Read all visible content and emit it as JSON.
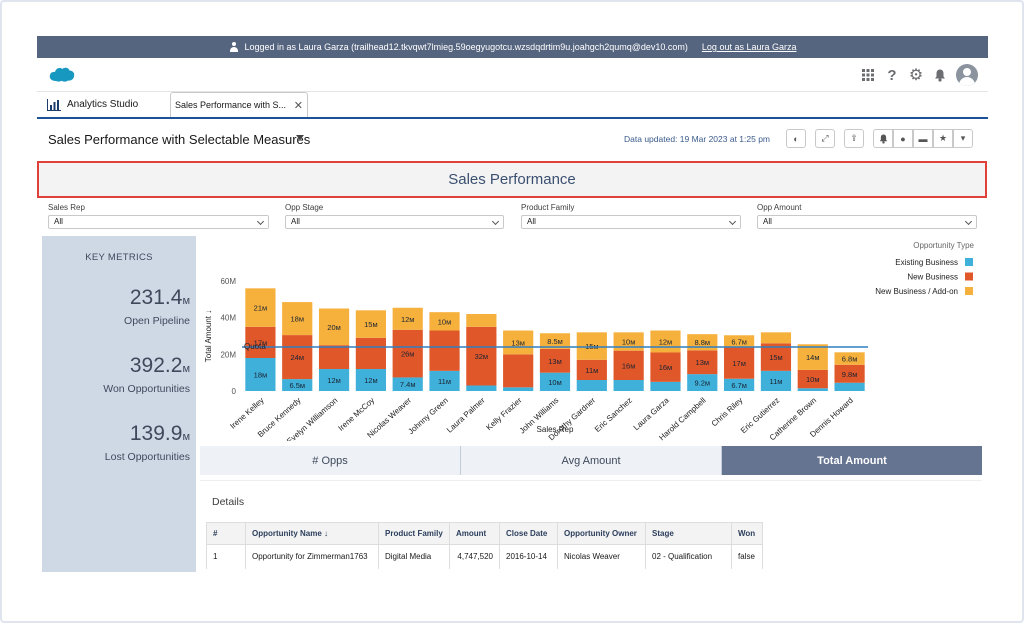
{
  "login_bar": {
    "text": "Logged in as Laura Garza (trailhead12.tkvqwt7lmieg.59oegyugotcu.wzsdqdrtim9u.joahgch2qumq@dev10.com)",
    "logout": "Log out as Laura Garza"
  },
  "header": {
    "icons": [
      "apps-grid-icon",
      "help-icon",
      "gear-icon",
      "bell-icon",
      "avatar"
    ]
  },
  "tabs": {
    "home": "Analytics Studio",
    "active": "Sales Performance with S..."
  },
  "dashboard": {
    "title": "Sales Performance with Selectable Measures",
    "updated": "Data updated: 19 Mar 2023 at 1:25 pm"
  },
  "banner": {
    "title": "Sales Performance"
  },
  "filters": [
    {
      "label": "Sales Rep",
      "value": "All"
    },
    {
      "label": "Opp Stage",
      "value": "All"
    },
    {
      "label": "Product Family",
      "value": "All"
    },
    {
      "label": "Opp Amount",
      "value": "All"
    }
  ],
  "key_metrics": {
    "title": "KEY METRICS",
    "items": [
      {
        "value": "231.4",
        "unit": "м",
        "label": "Open Pipeline"
      },
      {
        "value": "392.2",
        "unit": "м",
        "label": "Won Opportunities"
      },
      {
        "value": "139.9",
        "unit": "м",
        "label": "Lost Opportunities"
      }
    ]
  },
  "chart_data": {
    "type": "bar",
    "stacked": true,
    "xlabel": "Sales Rep",
    "ylabel": "Total Amount ↓",
    "ylim": [
      0,
      60
    ],
    "yticks": [
      "0",
      "20M",
      "40M",
      "60M"
    ],
    "legend_title": "Opportunity Type",
    "legend_position": "top-right",
    "reference_line": {
      "label": "Quota",
      "value": 24
    },
    "categories": [
      "Irene Kelley",
      "Bruce Kennedy",
      "Evelyn Williamson",
      "Irene McCoy",
      "Nicolas Weaver",
      "Johnny Green",
      "Laura Palmer",
      "Kelly Frazier",
      "John Williams",
      "Dorothy Gardner",
      "Eric Sanchez",
      "Laura Garza",
      "Harold Campbell",
      "Chris Riley",
      "Eric Gutierrez",
      "Catherine Brown",
      "Dennis Howard"
    ],
    "series": [
      {
        "name": "Existing Business",
        "color": "#3fb0d9",
        "values": [
          18,
          6.5,
          12,
          12,
          7.4,
          11,
          3,
          2,
          10,
          6,
          6,
          5,
          9.2,
          6.7,
          11,
          1.5,
          4.5
        ]
      },
      {
        "name": "New Business",
        "color": "#e0572a",
        "values": [
          17,
          24,
          13,
          17,
          26,
          22,
          32,
          18,
          13,
          11,
          16,
          16,
          13,
          17,
          15,
          10,
          9.8
        ]
      },
      {
        "name": "New Business / Add-on",
        "color": "#f6b03c",
        "values": [
          21,
          18,
          20,
          15,
          12,
          10,
          7,
          13,
          8.5,
          15,
          10,
          12,
          8.8,
          6.7,
          6,
          14,
          6.8
        ]
      }
    ],
    "data_labels": [
      [
        "18",
        "17",
        "21"
      ],
      [
        "6.5",
        "24",
        "18"
      ],
      [
        "12",
        "",
        "20"
      ],
      [
        "12",
        "",
        "15"
      ],
      [
        "7.4",
        "26",
        "12"
      ],
      [
        "11",
        "",
        "10"
      ],
      [
        "",
        "32",
        ""
      ],
      [
        "",
        "",
        "13"
      ],
      [
        "10",
        "13",
        "8.5"
      ],
      [
        "",
        "11",
        "15"
      ],
      [
        "",
        "16",
        "10"
      ],
      [
        "",
        "16",
        "12"
      ],
      [
        "9.2",
        "13",
        "8.8"
      ],
      [
        "6.7",
        "17",
        "6.7"
      ],
      [
        "11",
        "15",
        ""
      ],
      [
        "",
        "10",
        "14"
      ],
      [
        "",
        "9.8",
        "6.8"
      ]
    ],
    "label_suffix": "м"
  },
  "measure_toggles": {
    "items": [
      "# Opps",
      "Avg Amount",
      "Total Amount"
    ],
    "active": "Total Amount"
  },
  "details": {
    "title": "Details",
    "columns": [
      "#",
      "Opportunity Name ↓",
      "Product Family",
      "Amount",
      "Close Date",
      "Opportunity Owner",
      "Stage",
      "Won"
    ],
    "rows": [
      [
        "1",
        "Opportunity for Zimmerman1763",
        "Digital Media",
        "4,747,520",
        "2016-10-14",
        "Nicolas Weaver",
        "02 - Qualification",
        "false"
      ]
    ]
  }
}
